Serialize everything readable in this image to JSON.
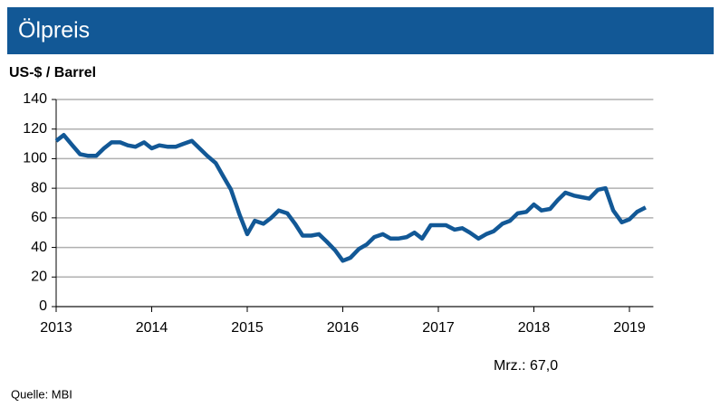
{
  "chart_data": {
    "type": "line",
    "title": "Ölpreis",
    "y_label": "US-$ / Barrel",
    "annotation": "Mrz.: 67,0",
    "source": "Quelle:  MBI",
    "x": [
      2013.0,
      2013.08,
      2013.17,
      2013.25,
      2013.33,
      2013.42,
      2013.5,
      2013.58,
      2013.67,
      2013.75,
      2013.83,
      2013.92,
      2014.0,
      2014.08,
      2014.17,
      2014.25,
      2014.33,
      2014.42,
      2014.5,
      2014.58,
      2014.67,
      2014.75,
      2014.83,
      2014.92,
      2015.0,
      2015.08,
      2015.17,
      2015.25,
      2015.33,
      2015.42,
      2015.5,
      2015.58,
      2015.67,
      2015.75,
      2015.83,
      2015.92,
      2016.0,
      2016.08,
      2016.17,
      2016.25,
      2016.33,
      2016.42,
      2016.5,
      2016.58,
      2016.67,
      2016.75,
      2016.83,
      2016.92,
      2017.0,
      2017.08,
      2017.17,
      2017.25,
      2017.33,
      2017.42,
      2017.5,
      2017.58,
      2017.67,
      2017.75,
      2017.83,
      2017.92,
      2018.0,
      2018.08,
      2018.17,
      2018.25,
      2018.33,
      2018.42,
      2018.5,
      2018.58,
      2018.67,
      2018.75,
      2018.83,
      2018.92,
      2019.0,
      2019.08,
      2019.17
    ],
    "values": [
      112,
      116,
      109,
      103,
      102,
      102,
      107,
      111,
      111,
      109,
      108,
      111,
      107,
      109,
      108,
      108,
      110,
      112,
      107,
      102,
      97,
      88,
      79,
      62,
      49,
      58,
      56,
      60,
      65,
      63,
      56,
      48,
      48,
      49,
      44,
      38,
      31,
      33,
      39,
      42,
      47,
      49,
      46,
      46,
      47,
      50,
      46,
      55,
      55,
      55,
      52,
      53,
      50,
      46,
      49,
      51,
      56,
      58,
      63,
      64,
      69,
      65,
      66,
      72,
      77,
      75,
      74,
      73,
      79,
      80,
      65,
      57,
      59,
      64,
      67
    ],
    "color": "#125896",
    "xlim": [
      2013,
      2019.25
    ],
    "xticks": [
      2013,
      2014,
      2015,
      2016,
      2017,
      2018,
      2019
    ],
    "ylim": [
      0,
      140
    ],
    "yticks": [
      0,
      20,
      40,
      60,
      80,
      100,
      120,
      140
    ],
    "grid": true
  }
}
